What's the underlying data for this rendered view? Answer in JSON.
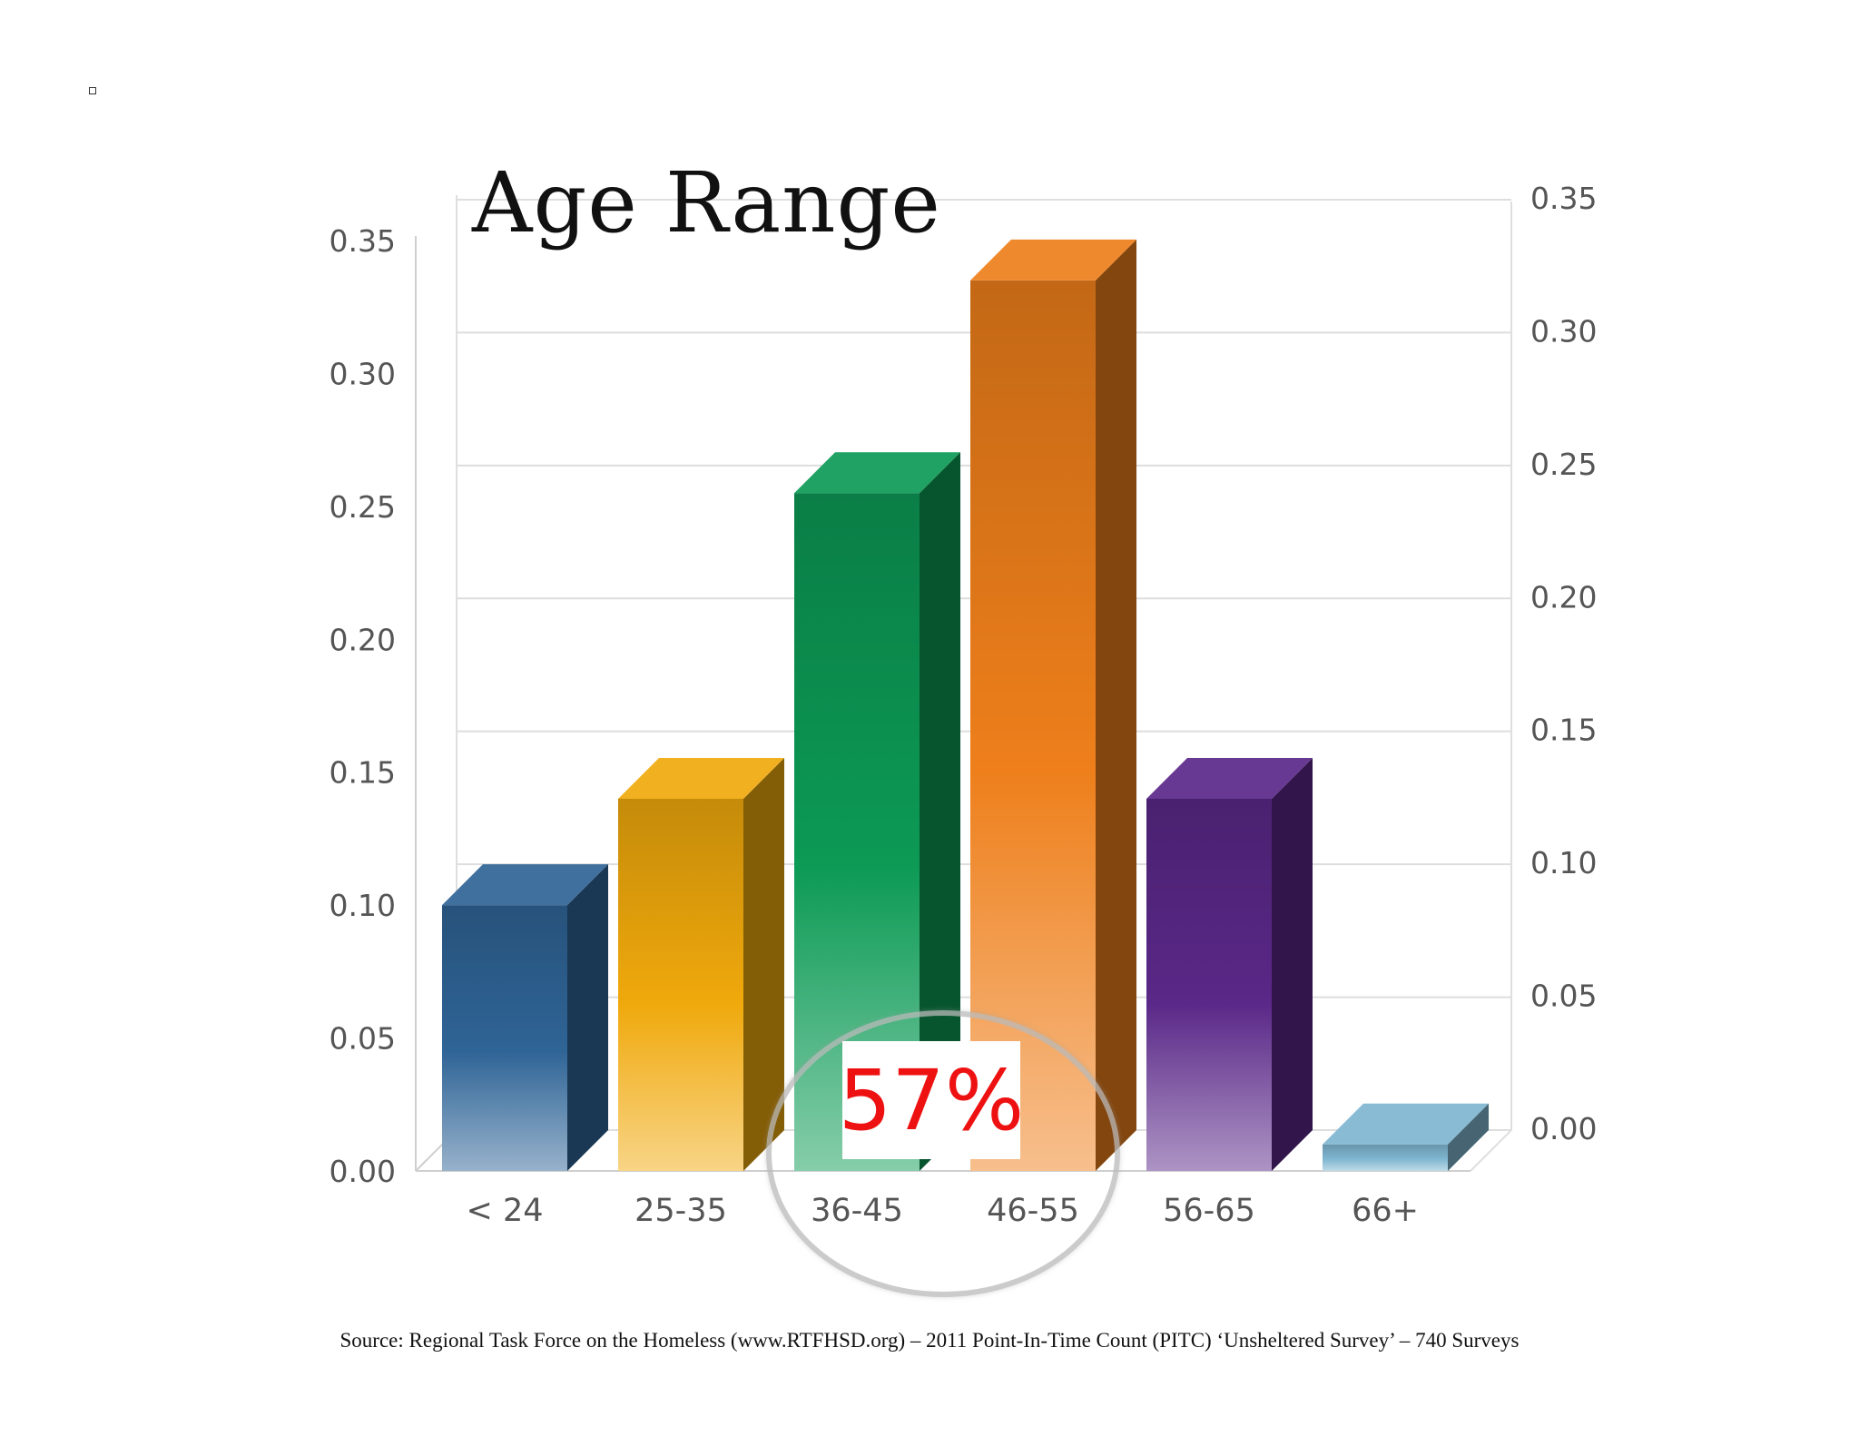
{
  "chart_data": {
    "type": "bar",
    "title": "Age Range",
    "categories": [
      "< 24",
      "25-35",
      "36-45",
      "46-55",
      "56-65",
      "66+"
    ],
    "values": [
      0.1,
      0.14,
      0.255,
      0.335,
      0.14,
      0.01
    ],
    "ylim": [
      0,
      0.35
    ],
    "yticks": [
      "0.00",
      "0.05",
      "0.10",
      "0.15",
      "0.20",
      "0.25",
      "0.30",
      "0.35"
    ],
    "grid": true,
    "legend": "none",
    "colors": [
      "#2f6496",
      "#f0a90c",
      "#0c9a55",
      "#ee7f1b",
      "#5a2888",
      "#7fb6d0"
    ],
    "annotation": "57%"
  },
  "source": "Source: Regional Task Force on the Homeless (www.RTFHSD.org) – 2011 Point-In-Time Count (PITC) ‘Unsheltered Survey’ – 740 Surveys"
}
